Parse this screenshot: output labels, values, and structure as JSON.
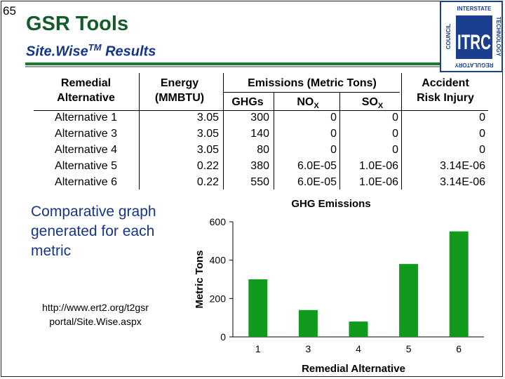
{
  "slide_number": "65",
  "title": "GSR Tools",
  "subtitle": {
    "main": "Site.Wise",
    "sup": "TM",
    "rest": " Results"
  },
  "logo": {
    "text_top": "INTERSTATE",
    "text_right": "TECHNOLOGY",
    "text_left": "COUNCIL",
    "text_bottom": "REGULATORY",
    "mark": "ITRC",
    "color": "#1b3f8f"
  },
  "table": {
    "headers": {
      "alternative": [
        "Remedial",
        "Alternative"
      ],
      "energy": [
        "Energy",
        "(MMBTU)"
      ],
      "emissions": "Emissions (Metric Tons)",
      "ghgs": "GHGs",
      "nox": {
        "main": "NO",
        "sub": "X"
      },
      "sox": {
        "main": "SO",
        "sub": "X"
      },
      "risk": [
        "Accident",
        "Risk Injury"
      ]
    },
    "rows": [
      {
        "alternative": "Alternative 1",
        "energy": "3.05",
        "ghgs": "300",
        "nox": "0",
        "sox": "0",
        "risk": "0"
      },
      {
        "alternative": "Alternative 3",
        "energy": "3.05",
        "ghgs": "140",
        "nox": "0",
        "sox": "0",
        "risk": "0"
      },
      {
        "alternative": "Alternative 4",
        "energy": "3.05",
        "ghgs": "80",
        "nox": "0",
        "sox": "0",
        "risk": "0"
      },
      {
        "alternative": "Alternative 5",
        "energy": "0.22",
        "ghgs": "380",
        "nox": "6.0E-05",
        "sox": "1.0E-06",
        "risk": "3.14E-06"
      },
      {
        "alternative": "Alternative 6",
        "energy": "0.22",
        "ghgs": "550",
        "nox": "6.0E-05",
        "sox": "1.0E-06",
        "risk": "3.14E-06"
      }
    ]
  },
  "comparative_text": "Comparative graph generated for each metric",
  "url_text": [
    "http://www.ert2.org/t2gsr",
    "portal/Site.Wise.aspx"
  ],
  "chart_data": {
    "type": "bar",
    "title": "GHG Emissions",
    "categories": [
      "1",
      "3",
      "4",
      "5",
      "6"
    ],
    "values": [
      300,
      140,
      80,
      380,
      550
    ],
    "xlabel": "Remedial Alternative",
    "ylabel": "Metric Tons",
    "ylim": [
      0,
      600
    ],
    "yticks": [
      0,
      200,
      400,
      600
    ],
    "grid": false,
    "bar_color": "#119a1e"
  }
}
